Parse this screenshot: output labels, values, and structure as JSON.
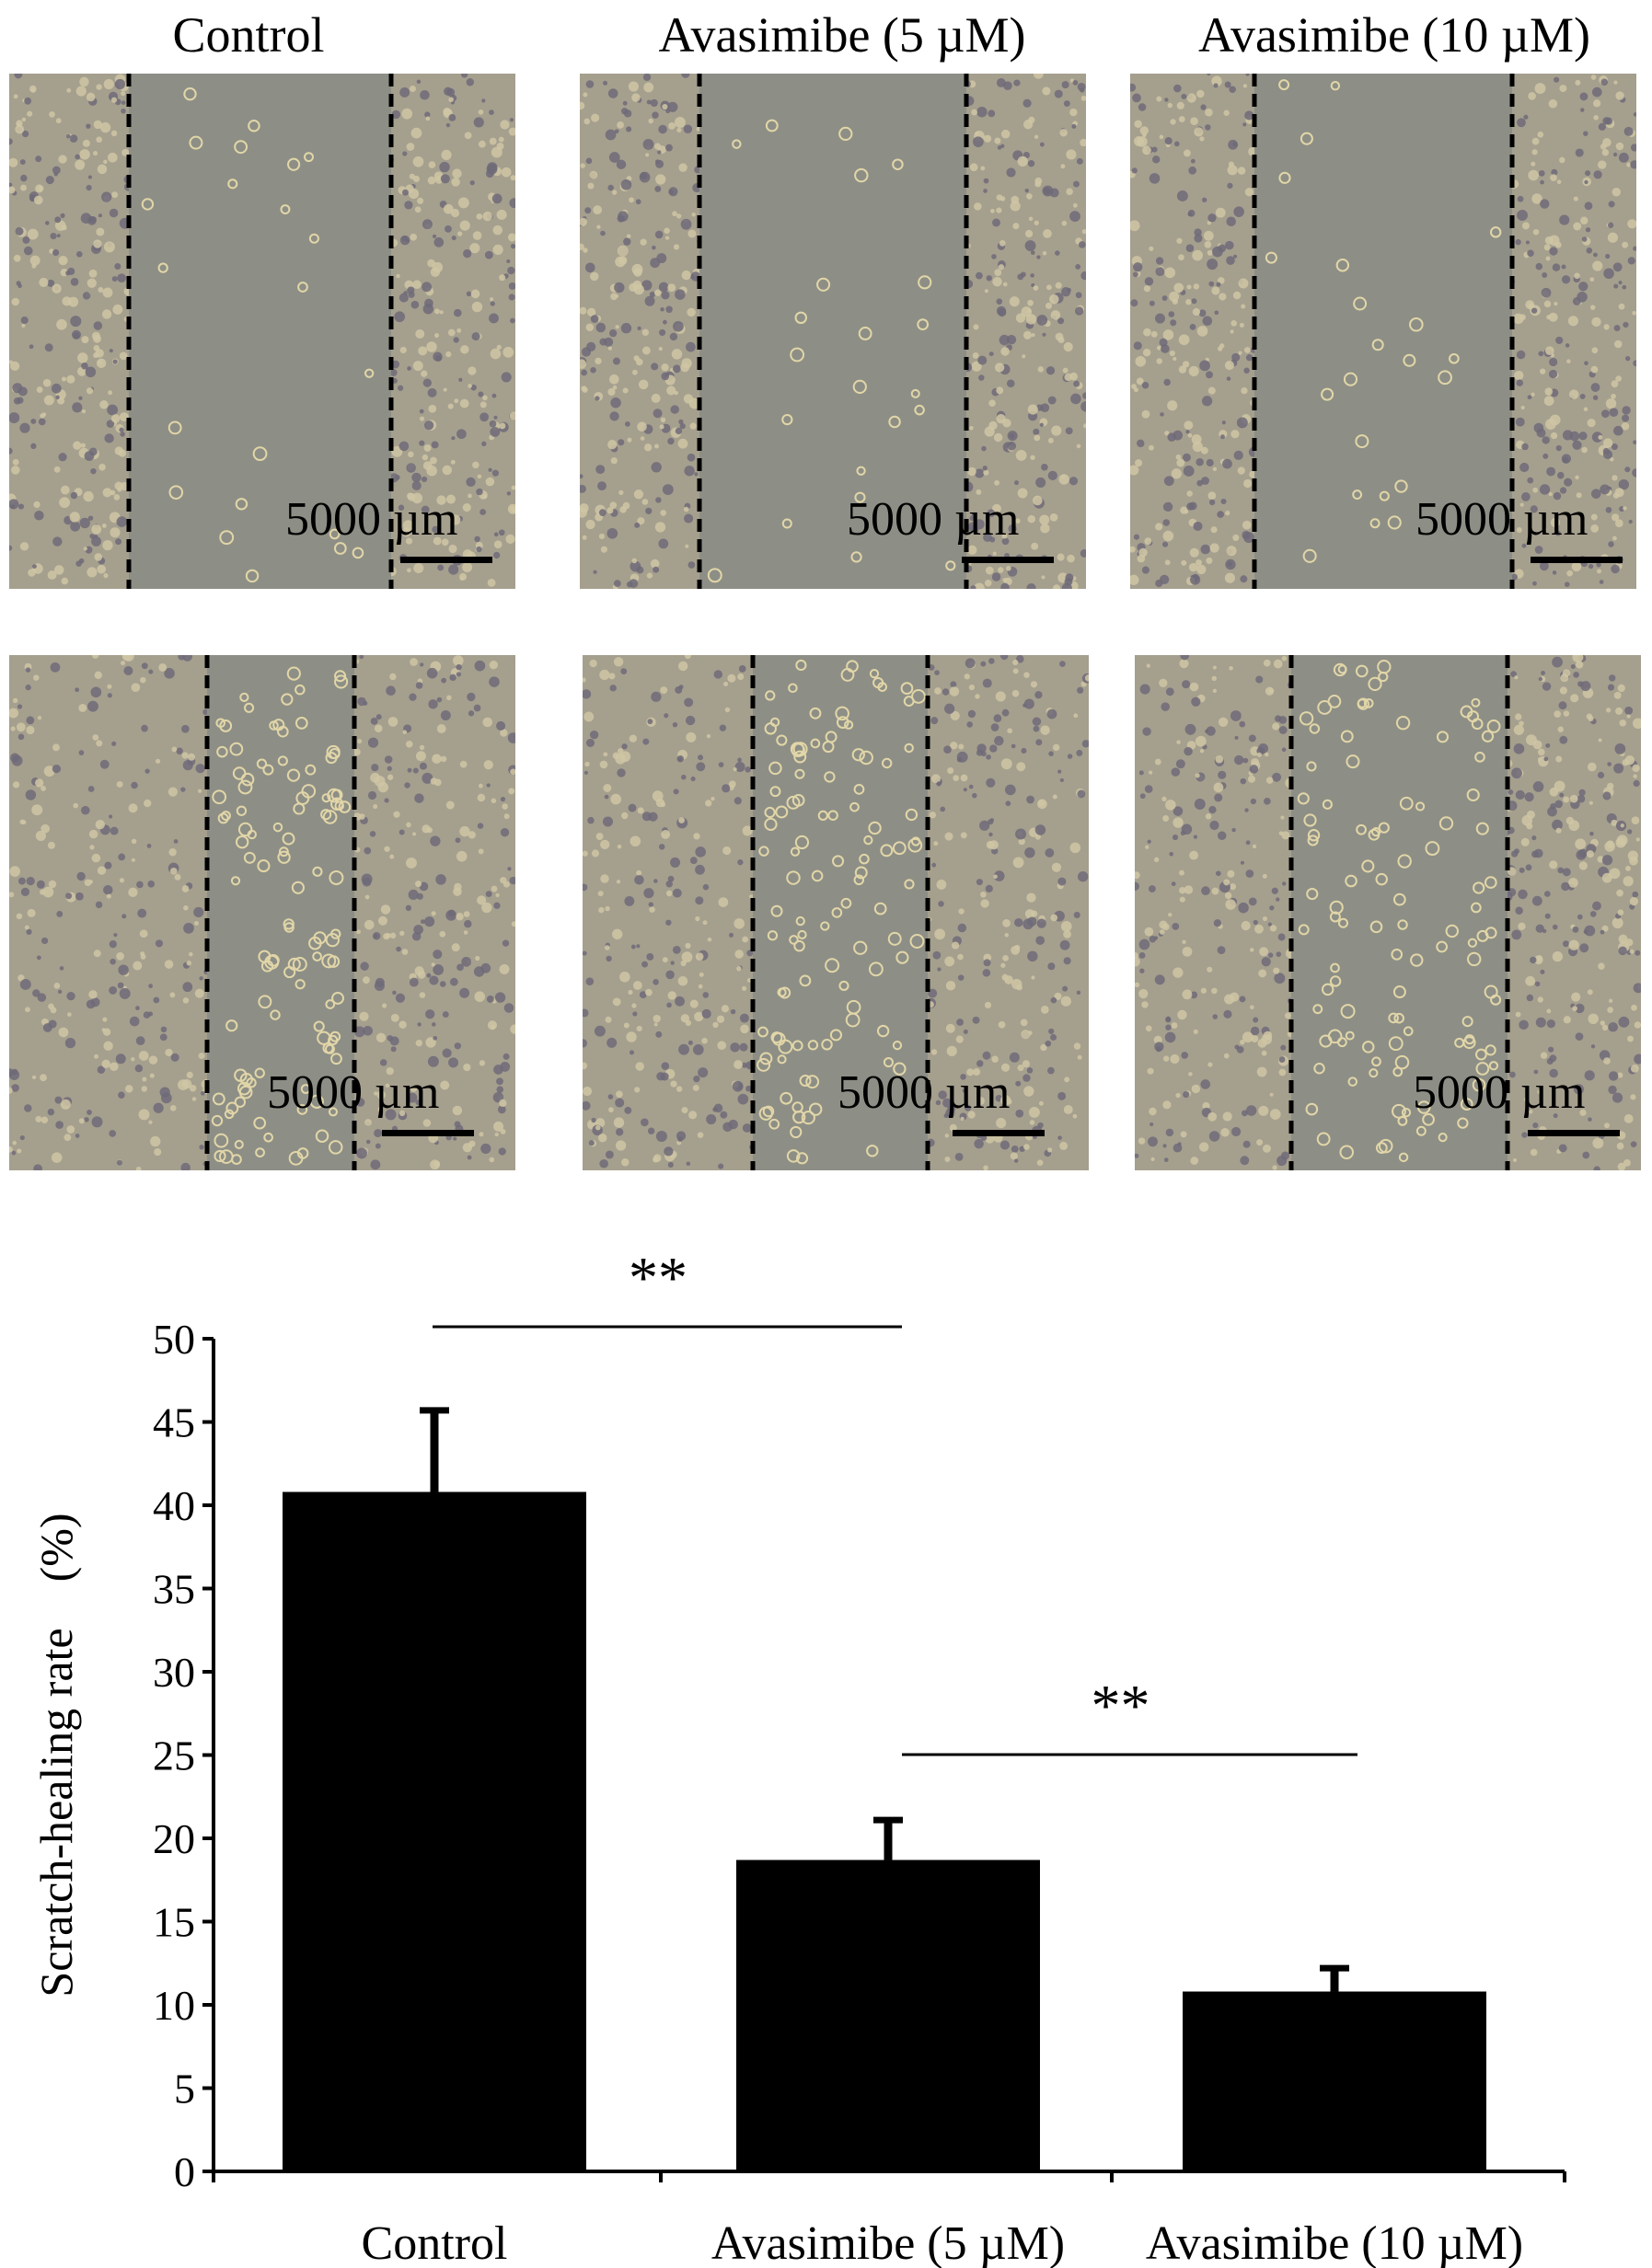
{
  "columns": [
    "Control",
    "Avasimibe (5 µM)",
    "Avasimibe (10 µM)"
  ],
  "scale_label": "5000 µm",
  "colors": {
    "bar": "#000000",
    "cells_light": "#cfc6a4",
    "cells_dark": "#6f6a78",
    "gap": "#8d8f86"
  },
  "chart_data": {
    "type": "bar",
    "categories": [
      "Control",
      "Avasimibe (5 µM)",
      "Avasimibe (10 µM)"
    ],
    "values": [
      40.8,
      18.7,
      10.8
    ],
    "errors": [
      4.9,
      2.4,
      1.4
    ],
    "ylabel": "Scratch-healing rate　(%)",
    "ylim": [
      0,
      50
    ],
    "yticks": [
      "0",
      "5",
      "10",
      "15",
      "20",
      "25",
      "30",
      "35",
      "40",
      "45",
      "50"
    ],
    "significance": [
      {
        "from": 0,
        "to": 1,
        "label": "**"
      },
      {
        "from": 1,
        "to": 2,
        "label": "**"
      }
    ]
  }
}
